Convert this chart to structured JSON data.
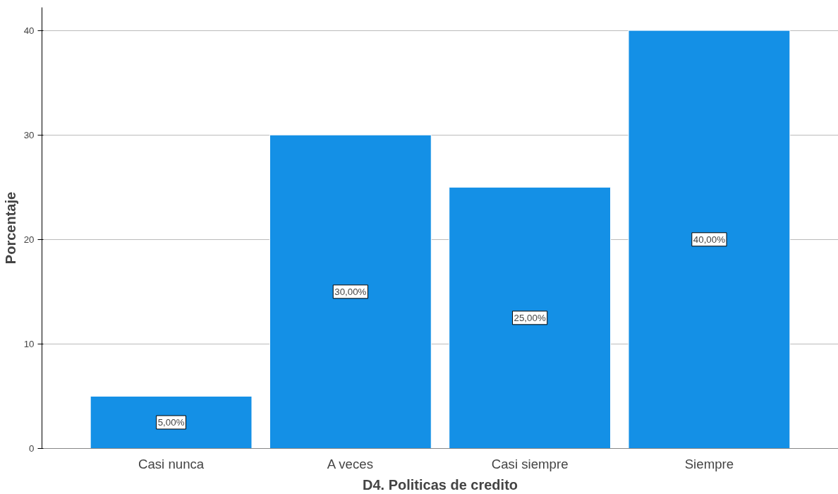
{
  "chart_data": {
    "type": "bar",
    "xlabel": "D4. Politicas de credito",
    "ylabel": "Porcentaje",
    "categories": [
      "Casi nunca",
      "A veces",
      "Casi siempre",
      "Siempre"
    ],
    "values": [
      5,
      30,
      25,
      40
    ],
    "value_labels": [
      "5,00%",
      "30,00%",
      "25,00%",
      "40,00%"
    ],
    "color": "#1490e6",
    "ylim": [
      0,
      42.2
    ],
    "yticks": [
      0,
      10,
      20,
      30,
      40
    ],
    "grid": "y"
  }
}
